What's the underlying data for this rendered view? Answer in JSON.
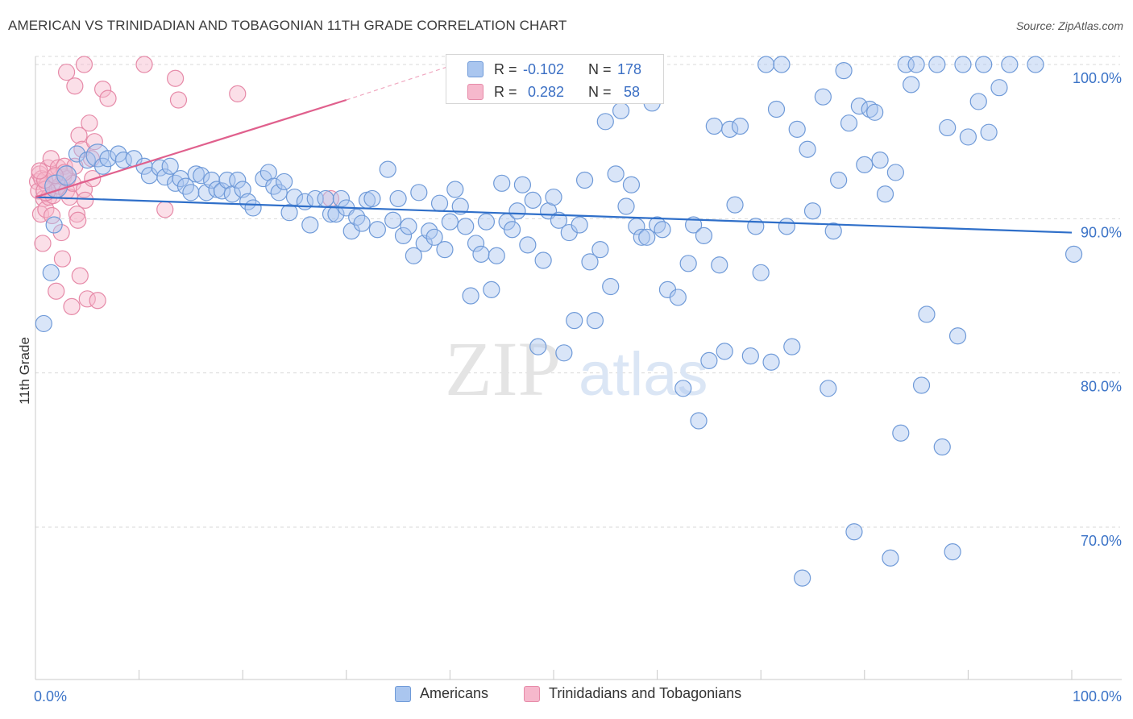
{
  "title": "AMERICAN VS TRINIDADIAN AND TOBAGONIAN 11TH GRADE CORRELATION CHART",
  "source": "Source: ZipAtlas.com",
  "watermark": {
    "zip": "ZIP",
    "atlas": "atlas"
  },
  "colors": {
    "blue_fill": "#aac6ef",
    "blue_stroke": "#6f9ad8",
    "blue_line": "#2f6fc9",
    "pink_fill": "#f6b8cc",
    "pink_stroke": "#e68aa8",
    "pink_line": "#e0608d",
    "grid": "#d9d9d9",
    "axis_text_blue": "#3b73c7"
  },
  "legend_box": {
    "rows": [
      {
        "series": "blue",
        "r_label": "R =",
        "r_value": "-0.102",
        "n_label": "N =",
        "n_value": "178"
      },
      {
        "series": "pink",
        "r_label": "R =",
        "r_value": "0.282",
        "n_label": "N =",
        "n_value": "58"
      }
    ]
  },
  "legend_bottom": [
    {
      "series": "blue",
      "label": "Americans"
    },
    {
      "series": "pink",
      "label": "Trinidadians and Tobagonians"
    }
  ],
  "chart_data": {
    "type": "scatter",
    "title": "AMERICAN VS TRINIDADIAN AND TOBAGONIAN 11TH GRADE CORRELATION CHART",
    "xlabel": "",
    "ylabel": "11th Grade",
    "xlim": [
      0,
      100
    ],
    "ylim": [
      60,
      101.5
    ],
    "x_tick_labels": [
      {
        "value": 0,
        "label": "0.0%"
      },
      {
        "value": 100,
        "label": "100.0%"
      }
    ],
    "x_minor_ticks": [
      0,
      10,
      20,
      30,
      40,
      50,
      60,
      70,
      80,
      90,
      100
    ],
    "y_ticks": [
      {
        "value": 100,
        "label": "100.0%"
      },
      {
        "value": 90,
        "label": "90.0%"
      },
      {
        "value": 80,
        "label": "80.0%"
      },
      {
        "value": 70,
        "label": "70.0%"
      }
    ],
    "series": [
      {
        "name": "Americans",
        "color": "blue",
        "R": -0.102,
        "N": 178,
        "trend": {
          "x0": 0,
          "y0": 91.4,
          "x1": 100,
          "y1": 89.1
        },
        "points": [
          [
            0.8,
            83.2,
            10
          ],
          [
            1.5,
            86.5,
            10
          ],
          [
            1.8,
            89.6,
            10
          ],
          [
            2,
            92.1,
            14
          ],
          [
            3,
            92.8,
            12
          ],
          [
            4,
            94.2,
            10
          ],
          [
            5,
            93.8,
            10
          ],
          [
            6,
            94.1,
            14
          ],
          [
            6.5,
            93.4,
            10
          ],
          [
            7,
            93.9,
            10
          ],
          [
            8,
            94.2,
            10
          ],
          [
            8.5,
            93.8,
            10
          ],
          [
            9.5,
            93.9,
            10
          ],
          [
            10.5,
            93.4,
            10
          ],
          [
            11,
            92.8,
            10
          ],
          [
            12,
            93.3,
            10
          ],
          [
            12.5,
            92.7,
            10
          ],
          [
            13,
            93.4,
            10
          ],
          [
            13.5,
            92.3,
            10
          ],
          [
            14,
            92.6,
            10
          ],
          [
            14.5,
            92.1,
            10
          ],
          [
            15,
            91.7,
            10
          ],
          [
            15.5,
            92.9,
            10
          ],
          [
            16,
            92.8,
            10
          ],
          [
            16.5,
            91.7,
            10
          ],
          [
            17,
            92.5,
            10
          ],
          [
            17.5,
            91.9,
            10
          ],
          [
            18,
            91.8,
            10
          ],
          [
            18.5,
            92.5,
            10
          ],
          [
            19,
            91.6,
            10
          ],
          [
            19.5,
            92.5,
            10
          ],
          [
            20,
            91.9,
            10
          ],
          [
            20.5,
            91.1,
            10
          ],
          [
            21,
            90.7,
            10
          ],
          [
            22,
            92.6,
            10
          ],
          [
            22.5,
            93,
            10
          ],
          [
            23,
            92.1,
            10
          ],
          [
            23.5,
            91.7,
            10
          ],
          [
            24,
            92.4,
            10
          ],
          [
            24.5,
            90.4,
            10
          ],
          [
            25,
            91.4,
            10
          ],
          [
            26,
            91.1,
            10
          ],
          [
            26.5,
            89.6,
            10
          ],
          [
            27,
            91.3,
            10
          ],
          [
            28,
            91.3,
            10
          ],
          [
            28.5,
            90.3,
            10
          ],
          [
            29,
            90.3,
            10
          ],
          [
            29.5,
            91.3,
            10
          ],
          [
            30,
            90.7,
            10
          ],
          [
            30.5,
            89.2,
            10
          ],
          [
            31,
            90.1,
            10
          ],
          [
            31.5,
            89.7,
            10
          ],
          [
            32,
            91.2,
            10
          ],
          [
            32.5,
            91.3,
            10
          ],
          [
            33,
            89.3,
            10
          ],
          [
            34,
            93.2,
            10
          ],
          [
            34.5,
            89.9,
            10
          ],
          [
            35,
            91.3,
            10
          ],
          [
            35.5,
            88.9,
            10
          ],
          [
            36,
            89.5,
            10
          ],
          [
            36.5,
            87.6,
            10
          ],
          [
            37,
            91.7,
            10
          ],
          [
            37.5,
            88.4,
            10
          ],
          [
            38,
            89.2,
            10
          ],
          [
            38.5,
            88.8,
            10
          ],
          [
            39,
            91,
            10
          ],
          [
            39.5,
            88,
            10
          ],
          [
            40,
            89.8,
            10
          ],
          [
            40.5,
            91.9,
            10
          ],
          [
            41,
            90.8,
            10
          ],
          [
            41.5,
            89.5,
            10
          ],
          [
            42,
            85,
            10
          ],
          [
            42.5,
            88.4,
            10
          ],
          [
            43,
            87.7,
            10
          ],
          [
            43.5,
            89.8,
            10
          ],
          [
            44,
            85.4,
            10
          ],
          [
            44.5,
            87.6,
            10
          ],
          [
            45,
            92.3,
            10
          ],
          [
            45.5,
            89.8,
            10
          ],
          [
            46,
            89.3,
            10
          ],
          [
            46.5,
            90.5,
            10
          ],
          [
            47,
            92.2,
            10
          ],
          [
            47.5,
            88.3,
            10
          ],
          [
            48,
            91.2,
            10
          ],
          [
            48.5,
            81.7,
            10
          ],
          [
            49,
            87.3,
            10
          ],
          [
            49.5,
            90.5,
            10
          ],
          [
            50,
            91.4,
            10
          ],
          [
            50.5,
            89.9,
            10
          ],
          [
            51,
            81.3,
            10
          ],
          [
            51.5,
            89.1,
            10
          ],
          [
            52,
            83.4,
            10
          ],
          [
            52.5,
            89.6,
            10
          ],
          [
            53,
            92.5,
            10
          ],
          [
            53.5,
            87.2,
            10
          ],
          [
            54,
            83.4,
            10
          ],
          [
            54.5,
            88,
            10
          ],
          [
            55,
            96.3,
            10
          ],
          [
            55.5,
            85.6,
            10
          ],
          [
            56,
            92.9,
            10
          ],
          [
            56.5,
            97,
            10
          ],
          [
            57,
            90.8,
            10
          ],
          [
            57.5,
            92.2,
            10
          ],
          [
            58,
            89.5,
            10
          ],
          [
            58.5,
            88.8,
            10
          ],
          [
            59,
            88.8,
            10
          ],
          [
            59.5,
            97.5,
            10
          ],
          [
            60,
            89.6,
            10
          ],
          [
            60.5,
            89.3,
            10
          ],
          [
            61,
            85.4,
            10
          ],
          [
            62,
            84.9,
            10
          ],
          [
            62.5,
            79,
            10
          ],
          [
            63,
            87.1,
            10
          ],
          [
            63.5,
            89.6,
            10
          ],
          [
            64,
            76.9,
            10
          ],
          [
            64.5,
            88.9,
            10
          ],
          [
            65,
            80.8,
            10
          ],
          [
            65.5,
            96,
            10
          ],
          [
            66,
            87,
            10
          ],
          [
            66.5,
            81.4,
            10
          ],
          [
            67,
            95.8,
            10
          ],
          [
            67.5,
            90.9,
            10
          ],
          [
            68,
            96,
            10
          ],
          [
            69,
            81.1,
            10
          ],
          [
            69.5,
            89.5,
            10
          ],
          [
            70,
            86.5,
            10
          ],
          [
            70.5,
            100,
            10
          ],
          [
            71,
            80.7,
            10
          ],
          [
            71.5,
            97.1,
            10
          ],
          [
            72,
            100,
            10
          ],
          [
            72.5,
            89.5,
            10
          ],
          [
            73,
            81.7,
            10
          ],
          [
            73.5,
            95.8,
            10
          ],
          [
            74,
            66.7,
            10
          ],
          [
            74.5,
            94.5,
            10
          ],
          [
            75,
            90.5,
            10
          ],
          [
            76,
            97.9,
            10
          ],
          [
            76.5,
            79,
            10
          ],
          [
            77,
            89.2,
            10
          ],
          [
            77.5,
            92.5,
            10
          ],
          [
            78,
            99.6,
            10
          ],
          [
            78.5,
            96.2,
            10
          ],
          [
            79,
            69.7,
            10
          ],
          [
            79.5,
            97.3,
            10
          ],
          [
            80,
            93.5,
            10
          ],
          [
            80.5,
            97.1,
            10
          ],
          [
            81,
            96.9,
            10
          ],
          [
            81.5,
            93.8,
            10
          ],
          [
            82,
            91.6,
            10
          ],
          [
            82.5,
            68,
            10
          ],
          [
            83,
            93,
            10
          ],
          [
            83.5,
            76.1,
            10
          ],
          [
            84,
            100,
            10
          ],
          [
            84.5,
            98.7,
            10
          ],
          [
            85,
            100,
            10
          ],
          [
            85.5,
            79.2,
            10
          ],
          [
            86,
            83.8,
            10
          ],
          [
            87,
            100,
            10
          ],
          [
            87.5,
            75.2,
            10
          ],
          [
            88,
            95.9,
            10
          ],
          [
            88.5,
            68.4,
            10
          ],
          [
            89,
            82.4,
            10
          ],
          [
            89.5,
            100,
            10
          ],
          [
            90,
            95.3,
            10
          ],
          [
            91,
            97.6,
            10
          ],
          [
            91.5,
            100,
            10
          ],
          [
            92,
            95.6,
            10
          ],
          [
            93,
            98.5,
            10
          ],
          [
            94,
            100,
            10
          ],
          [
            96.5,
            100,
            10
          ],
          [
            100.2,
            87.7,
            10
          ]
        ]
      },
      {
        "name": "Trinidadians and Tobagonians",
        "color": "pink",
        "R": 0.282,
        "N": 58,
        "trend": {
          "x0": 0,
          "y0": 91.4,
          "x1": 30,
          "y1": 97.7,
          "dash_to": {
            "x": 40,
            "y": 99.9
          }
        },
        "points": [
          [
            0.2,
            92.4,
            10
          ],
          [
            0.3,
            91.8,
            10
          ],
          [
            0.4,
            92.9,
            10
          ],
          [
            0.5,
            90.3,
            10
          ],
          [
            0.6,
            92.6,
            10
          ],
          [
            0.7,
            88.4,
            10
          ],
          [
            0.8,
            91.3,
            10
          ],
          [
            1,
            90.6,
            10
          ],
          [
            1.1,
            92.2,
            10
          ],
          [
            1.2,
            93.3,
            10
          ],
          [
            1.3,
            91.4,
            10
          ],
          [
            1.5,
            93.9,
            10
          ],
          [
            1.6,
            90.2,
            10
          ],
          [
            1.7,
            91.5,
            10
          ],
          [
            1.8,
            92.7,
            10
          ],
          [
            2,
            85.3,
            10
          ],
          [
            2.1,
            91.9,
            10
          ],
          [
            2.2,
            93.3,
            10
          ],
          [
            2.3,
            92.1,
            10
          ],
          [
            2.5,
            89.1,
            10
          ],
          [
            2.6,
            87.4,
            10
          ],
          [
            2.7,
            92.7,
            10
          ],
          [
            2.8,
            93.4,
            10
          ],
          [
            3,
            91.8,
            10
          ],
          [
            3.1,
            92.6,
            10
          ],
          [
            3.3,
            91.4,
            10
          ],
          [
            3.5,
            84.3,
            10
          ],
          [
            3.6,
            92.3,
            10
          ],
          [
            3.8,
            93.4,
            10
          ],
          [
            4,
            90.3,
            10
          ],
          [
            4.2,
            95.4,
            10
          ],
          [
            4.3,
            86.3,
            10
          ],
          [
            4.5,
            94.5,
            10
          ],
          [
            4.7,
            91.9,
            10
          ],
          [
            4.8,
            91.2,
            10
          ],
          [
            5,
            84.8,
            10
          ],
          [
            5.2,
            96.2,
            10
          ],
          [
            5.4,
            93.9,
            10
          ],
          [
            5.5,
            92.6,
            10
          ],
          [
            5.7,
            95,
            10
          ],
          [
            6,
            84.7,
            10
          ],
          [
            6.5,
            98.4,
            10
          ],
          [
            7,
            97.8,
            10
          ],
          [
            3,
            99.5,
            10
          ],
          [
            3.8,
            98.6,
            10
          ],
          [
            4.7,
            100,
            10
          ],
          [
            10.5,
            100,
            10
          ],
          [
            13.5,
            99.1,
            10
          ],
          [
            13.8,
            97.7,
            10
          ],
          [
            19.5,
            98.1,
            10
          ],
          [
            12.5,
            90.6,
            10
          ],
          [
            28.5,
            91.3,
            10
          ],
          [
            1,
            91.8,
            12
          ],
          [
            2.8,
            93,
            10
          ],
          [
            4.1,
            89.9,
            10
          ],
          [
            0.9,
            92.5,
            10
          ],
          [
            1.9,
            92.8,
            10
          ],
          [
            0.4,
            93.1,
            10
          ]
        ]
      }
    ]
  }
}
